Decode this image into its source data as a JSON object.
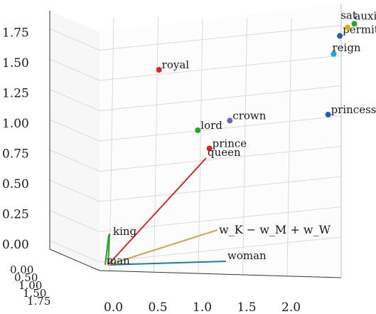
{
  "chart_data": {
    "type": "scatter-3d",
    "x_ticks": [
      "0.0",
      "0.5",
      "1.0",
      "1.5",
      "2.0"
    ],
    "y_ticks": [
      "0.00",
      "0.25",
      "0.50",
      "0.75",
      "1.00",
      "1.25",
      "1.50",
      "1.75"
    ],
    "z_ticks_overlapping": [
      "0.00",
      "0.50",
      "1.00",
      "1.50",
      "1.75"
    ],
    "grid": true,
    "points": [
      {
        "label": "royal",
        "x": 0.4,
        "y": 1.5,
        "color": "#d62728"
      },
      {
        "label": "lord",
        "x": 0.9,
        "y": 1.0,
        "color": "#2ca02c"
      },
      {
        "label": "crown",
        "x": 1.25,
        "y": 1.08,
        "color": "#7b5fbf"
      },
      {
        "label": "prince",
        "x": 1.05,
        "y": 0.85,
        "color": "#d62728"
      },
      {
        "label": "princess",
        "x": 2.35,
        "y": 1.13,
        "color": "#1f5fb0"
      },
      {
        "label": "reign",
        "x": 2.35,
        "y": 1.63,
        "color": "#17a8e0"
      },
      {
        "label": "permitting",
        "x": 2.4,
        "y": 1.78,
        "color": "#1f5fb0"
      },
      {
        "label": "auxiliary",
        "x": 2.55,
        "y": 1.88,
        "color": "#2ca02c"
      },
      {
        "label": "sat",
        "x": 2.48,
        "y": 1.85,
        "color": "#d4b400"
      }
    ],
    "vectors": [
      {
        "from": "man",
        "to": "queen",
        "color": "#d62728"
      },
      {
        "from": "man",
        "to": "king",
        "color": "#2ca02c"
      },
      {
        "from": "man",
        "to": "woman",
        "color": "#1f77b4"
      },
      {
        "from": "man",
        "to": "wK-wM+wW",
        "color": "#c8a850"
      }
    ],
    "anchor_labels": {
      "man": "man",
      "king": "king",
      "queen": "queen",
      "woman": "woman",
      "equation": "w_K − w_M + w_W"
    }
  }
}
